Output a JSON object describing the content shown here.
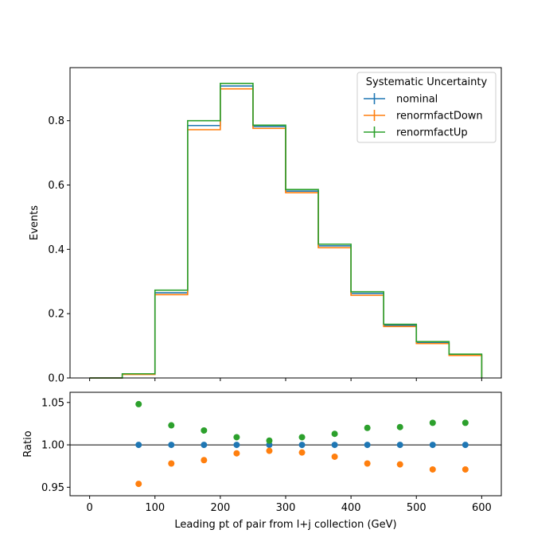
{
  "chart_data": [
    {
      "type": "line",
      "drawstyle": "steps",
      "xlabel": "",
      "ylabel": "Events",
      "xlim": [
        -30,
        630
      ],
      "ylim": [
        0,
        0.965
      ],
      "yticks": [
        0.0,
        0.2,
        0.4,
        0.6,
        0.8
      ],
      "ytick_labels": [
        "0.0",
        "0.2",
        "0.4",
        "0.6",
        "0.8"
      ],
      "bin_edges": [
        0,
        50,
        100,
        150,
        200,
        250,
        300,
        350,
        400,
        450,
        500,
        550,
        600
      ],
      "legend": {
        "title": "Systematic Uncertainty",
        "placement": "top-right"
      },
      "series": [
        {
          "name": "nominal",
          "color": "#1f77b4",
          "values": [
            0.0,
            0.012,
            0.265,
            0.785,
            0.908,
            0.782,
            0.581,
            0.411,
            0.263,
            0.164,
            0.11,
            0.072
          ]
        },
        {
          "name": "renormfactDown",
          "color": "#ff7f0e",
          "values": [
            0.0,
            0.011,
            0.259,
            0.772,
            0.899,
            0.776,
            0.576,
            0.405,
            0.257,
            0.16,
            0.107,
            0.07
          ]
        },
        {
          "name": "renormfactUp",
          "color": "#2ca02c",
          "values": [
            0.0,
            0.013,
            0.273,
            0.8,
            0.916,
            0.786,
            0.586,
            0.416,
            0.268,
            0.167,
            0.113,
            0.074
          ]
        }
      ]
    },
    {
      "type": "scatter",
      "xlabel": "Leading pt of pair from l+j collection (GeV)",
      "ylabel": "Ratio",
      "xlim": [
        -30,
        630
      ],
      "ylim": [
        0.94,
        1.062
      ],
      "yticks": [
        0.95,
        1.0,
        1.05
      ],
      "ytick_labels": [
        "0.95",
        "1.00",
        "1.05"
      ],
      "xticks": [
        0,
        100,
        200,
        300,
        400,
        500,
        600
      ],
      "xtick_labels": [
        "0",
        "100",
        "200",
        "300",
        "400",
        "500",
        "600"
      ],
      "reference_line": 1.0,
      "x": [
        75,
        125,
        175,
        225,
        275,
        325,
        375,
        425,
        475,
        525,
        575
      ],
      "series": [
        {
          "name": "nominal",
          "color": "#1f77b4",
          "values": [
            1.0,
            1.0,
            1.0,
            1.0,
            1.0,
            1.0,
            1.0,
            1.0,
            1.0,
            1.0,
            1.0
          ]
        },
        {
          "name": "renormfactDown",
          "color": "#ff7f0e",
          "values": [
            0.954,
            0.978,
            0.982,
            0.99,
            0.993,
            0.991,
            0.986,
            0.978,
            0.977,
            0.971,
            0.971
          ]
        },
        {
          "name": "renormfactUp",
          "color": "#2ca02c",
          "values": [
            1.048,
            1.023,
            1.017,
            1.009,
            1.005,
            1.009,
            1.013,
            1.02,
            1.021,
            1.026,
            1.026
          ]
        }
      ]
    }
  ]
}
